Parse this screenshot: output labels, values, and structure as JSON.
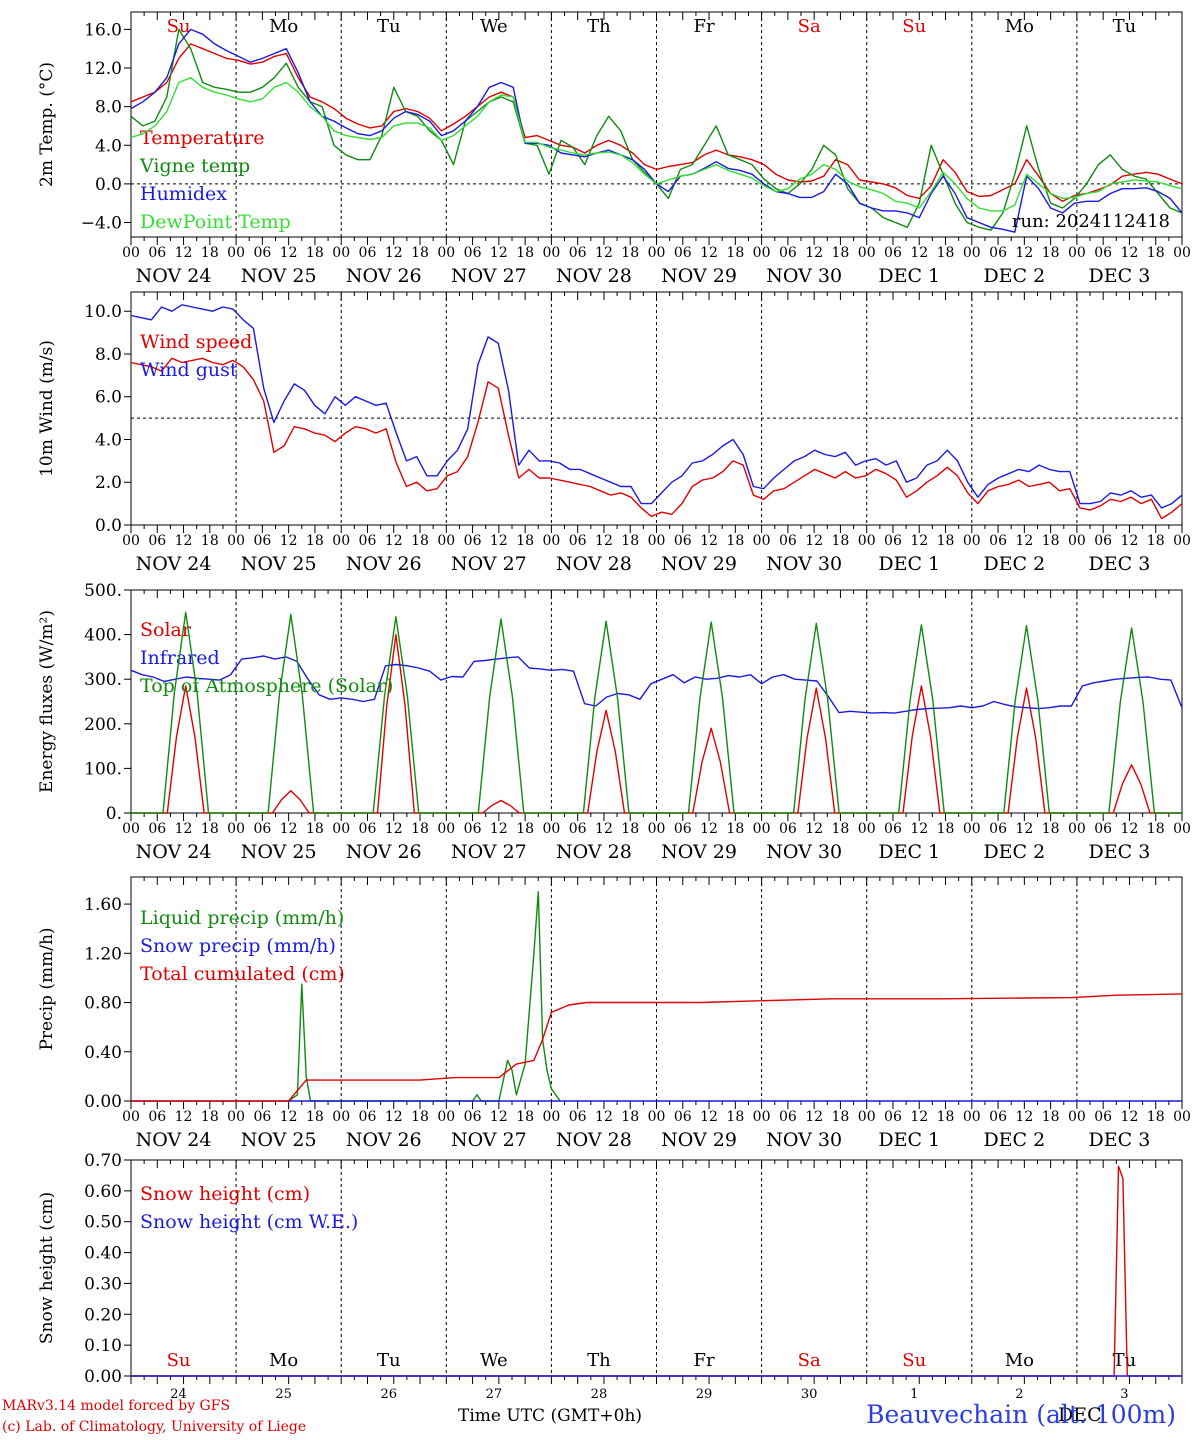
{
  "footer": {
    "model_line": "MARv3.14 model forced by GFS",
    "lab_line": "(c) Lab. of Climatology, University of Liege",
    "station": "Beauvechain (alt. 100m)",
    "xaxis_title": "Time UTC (GMT+0h)",
    "overlay_month": "DEC"
  },
  "time_axis": {
    "hour_ticks": [
      "00",
      "06",
      "12",
      "18"
    ],
    "dates": [
      "NOV 24",
      "NOV 25",
      "NOV 26",
      "NOV 27",
      "NOV 28",
      "NOV 29",
      "NOV 30",
      "DEC  1",
      "DEC  2",
      "DEC  3"
    ],
    "weekdays": [
      "Su",
      "Mo",
      "Tu",
      "We",
      "Th",
      "Fr",
      "Sa",
      "Su",
      "Mo",
      "Tu"
    ],
    "weekend_days": [
      0,
      6,
      7
    ],
    "bottom_daynums": [
      "24",
      "25",
      "26",
      "27",
      "28",
      "29",
      "30",
      "1",
      "2",
      "3"
    ],
    "n_hours": 240
  },
  "colors": {
    "red": "#e00000",
    "green": "#108a10",
    "blue": "#1a1ae0",
    "lightgreen": "#33dd33",
    "weekday": "#000000",
    "weekend": "#e00000"
  },
  "chart_data": [
    {
      "id": "temp",
      "type": "line",
      "ylabel": "2m Temp. (°C)",
      "ylim": [
        -5.5,
        17.8
      ],
      "ticks": [
        -4.0,
        0.0,
        4.0,
        8.0,
        12.0,
        16.0
      ],
      "tick_labels": [
        "−4.0",
        "0.0",
        "4.0",
        "8.0",
        "12.0",
        "16.0"
      ],
      "hline": 0,
      "weekday_header": true,
      "annotation": "run: 2024112418",
      "series": [
        {
          "name": "Temperature",
          "color": "red",
          "values": [
            8.5,
            9,
            9.5,
            10.5,
            13,
            14.5,
            14,
            13.5,
            13,
            12.8,
            12.4,
            12.6,
            13.2,
            13.5,
            11,
            9,
            8.5,
            7.8,
            6.8,
            6.2,
            5.8,
            6,
            7.5,
            7.8,
            7.5,
            6.8,
            5.5,
            6.2,
            7,
            8,
            9,
            9.5,
            9,
            4.8,
            5,
            4.5,
            4,
            3.8,
            3.2,
            4,
            4.5,
            4,
            3.2,
            2,
            1.5,
            1.8,
            2,
            2.2,
            3,
            3.5,
            3,
            2.8,
            2.5,
            2,
            1,
            0.4,
            0.2,
            0.3,
            0.8,
            2.5,
            2,
            0.4,
            0.2,
            0,
            -0.4,
            -1.2,
            -1.5,
            -0.2,
            2.5,
            1.2,
            -0.8,
            -1.3,
            -1.2,
            -0.6,
            0,
            2.5,
            0.8,
            -1,
            -1.8,
            -1.2,
            -1,
            -0.6,
            -0.1,
            0.8,
            1,
            1.2,
            1,
            0.5,
            0
          ]
        },
        {
          "name": "Vigne temp",
          "color": "green",
          "values": [
            7,
            6,
            6.5,
            9,
            16,
            14,
            10.5,
            10,
            9.8,
            9.5,
            9.5,
            10,
            11,
            12.5,
            10,
            8.5,
            8,
            4,
            3,
            2.5,
            2.5,
            5,
            10,
            7.5,
            7,
            5.5,
            4.5,
            2,
            6.5,
            7.5,
            8.5,
            9,
            8.5,
            4.2,
            4,
            1,
            4.5,
            3.8,
            2,
            5,
            7,
            5.5,
            2.5,
            1.2,
            0,
            -1.5,
            1.5,
            2,
            4,
            6,
            3,
            2.5,
            2,
            0.5,
            -0.5,
            -1,
            0,
            1.5,
            4,
            3,
            -0.5,
            -2,
            -2.5,
            -3.5,
            -4,
            -4.5,
            -2,
            4,
            1,
            -2,
            -4,
            -4.5,
            -4.8,
            -3,
            1,
            6,
            1.5,
            -2,
            -2.5,
            -1.5,
            0,
            2,
            3,
            1.5,
            0.8,
            0.5,
            -1,
            -2.5,
            -3
          ]
        },
        {
          "name": "Humidex",
          "color": "blue",
          "values": [
            7.8,
            8.5,
            9.5,
            11,
            14.5,
            16,
            15.5,
            14.5,
            13.8,
            13.2,
            12.6,
            13,
            13.5,
            14,
            11.5,
            8.5,
            7,
            6.5,
            5.8,
            5.2,
            5,
            5.5,
            6.8,
            7.5,
            7.2,
            6.5,
            5,
            5.5,
            6.5,
            8,
            10,
            10.5,
            10,
            4.2,
            4.2,
            4,
            3.2,
            3,
            2.8,
            3.2,
            3.5,
            3,
            2.5,
            1.5,
            0,
            -0.8,
            0.8,
            1,
            1.6,
            2.3,
            1.6,
            1.4,
            1,
            0,
            -0.8,
            -1,
            -1.4,
            -1.4,
            -0.8,
            1,
            0,
            -2,
            -2.5,
            -2.8,
            -2.8,
            -3,
            -3.5,
            -1,
            0.8,
            -1,
            -3.5,
            -4,
            -4.5,
            -4.7,
            -5,
            0.8,
            -0.5,
            -2.5,
            -3,
            -2,
            -1.8,
            -1.8,
            -1,
            -0.5,
            -0.5,
            -0.4,
            -0.8,
            -1.5,
            -3
          ]
        },
        {
          "name": "DewPoint Temp",
          "color": "lightgreen",
          "values": [
            4.8,
            5.2,
            6,
            7.5,
            10.5,
            11,
            10,
            9.5,
            9.2,
            8.8,
            8.5,
            8.8,
            10,
            10.5,
            9.5,
            8,
            7,
            5.5,
            5,
            4.8,
            4.6,
            4.8,
            6,
            6.3,
            6.3,
            5.8,
            4.5,
            5,
            6,
            7,
            8.5,
            9.2,
            9,
            4.3,
            4.3,
            3.8,
            3.5,
            3.2,
            3,
            3.2,
            3.3,
            3,
            2.2,
            1,
            0,
            0.4,
            0.8,
            1,
            1.5,
            2,
            1.4,
            1,
            0.6,
            -0.2,
            -0.8,
            -0.5,
            0.5,
            1,
            2,
            1.5,
            0.3,
            -0.3,
            -0.6,
            -1,
            -1.8,
            -2,
            -2.5,
            -0.8,
            1.2,
            0,
            -1.5,
            -2.5,
            -2.8,
            -2.8,
            -2.2,
            1,
            0,
            -1,
            -1.5,
            -1.4,
            -1,
            -0.8,
            0,
            0.2,
            0.4,
            0.3,
            0.2,
            -0.2,
            -0.5
          ]
        }
      ]
    },
    {
      "id": "wind",
      "type": "line",
      "ylabel": "10m Wind (m/s)",
      "ylim": [
        0,
        10.9
      ],
      "ticks": [
        0,
        2,
        4,
        6,
        8,
        10
      ],
      "tick_labels": [
        "0.0",
        "2.0",
        "4.0",
        "6.0",
        "8.0",
        "10.0"
      ],
      "hline": 5,
      "series": [
        {
          "name": "Wind speed",
          "color": "red",
          "values": [
            7.6,
            7.5,
            7.4,
            7.2,
            7.8,
            7.6,
            7.7,
            7.8,
            7.6,
            7.5,
            7.7,
            7.4,
            6.8,
            5.8,
            3.4,
            3.7,
            4.6,
            4.5,
            4.3,
            4.2,
            3.9,
            4.3,
            4.6,
            4.5,
            4.3,
            4.5,
            2.9,
            1.8,
            2,
            1.6,
            1.7,
            2.3,
            2.5,
            3.2,
            4.8,
            6.7,
            6.4,
            4.2,
            2.2,
            2.6,
            2.2,
            2.2,
            2.1,
            2,
            1.9,
            1.8,
            1.6,
            1.4,
            1.5,
            1.3,
            0.8,
            0.4,
            0.6,
            0.5,
            1,
            1.8,
            2.1,
            2.2,
            2.5,
            3,
            2.8,
            1.4,
            1.2,
            1.6,
            1.7,
            2,
            2.3,
            2.6,
            2.4,
            2.2,
            2.5,
            2.2,
            2.3,
            2.6,
            2.4,
            2.1,
            1.3,
            1.6,
            2,
            2.3,
            2.7,
            2.3,
            1.5,
            1,
            1.6,
            1.8,
            1.9,
            2.1,
            1.8,
            1.9,
            2,
            1.6,
            1.7,
            0.8,
            0.7,
            0.9,
            1.2,
            1.1,
            1.3,
            1,
            1.2,
            0.3,
            0.6,
            1
          ]
        },
        {
          "name": "Wind gust",
          "color": "blue",
          "values": [
            9.8,
            9.7,
            9.6,
            10.2,
            10,
            10.3,
            10.2,
            10.1,
            10,
            10.2,
            10.1,
            9.6,
            9.2,
            6.4,
            4.8,
            5.8,
            6.6,
            6.3,
            5.6,
            5.2,
            6,
            5.6,
            6,
            5.8,
            5.6,
            5.7,
            4.3,
            3,
            3.2,
            2.3,
            2.3,
            3,
            3.5,
            4.5,
            7.5,
            8.8,
            8.5,
            6.3,
            2.8,
            3.5,
            3,
            3,
            2.9,
            2.6,
            2.6,
            2.4,
            2.2,
            2,
            1.8,
            1.8,
            1,
            1,
            1.5,
            2,
            2.3,
            2.9,
            3,
            3.3,
            3.7,
            4,
            3.3,
            1.8,
            1.7,
            2.2,
            2.6,
            3,
            3.2,
            3.5,
            3.3,
            3.2,
            3.4,
            2.8,
            3,
            3.1,
            2.8,
            3,
            2,
            2.2,
            2.8,
            3,
            3.5,
            3,
            2,
            1.3,
            1.9,
            2.2,
            2.4,
            2.6,
            2.5,
            2.8,
            2.6,
            2.5,
            2.5,
            1,
            1,
            1.1,
            1.5,
            1.4,
            1.6,
            1.3,
            1.4,
            0.8,
            1,
            1.4
          ]
        }
      ]
    },
    {
      "id": "energy",
      "type": "line",
      "ylabel": "Energy fluxes (W/m²)",
      "ylim": [
        0,
        500
      ],
      "ticks": [
        0,
        100,
        200,
        300,
        400,
        500
      ],
      "tick_labels": [
        "0.",
        "100.",
        "200.",
        "300.",
        "400.",
        "500."
      ],
      "series": [
        {
          "name": "Solar",
          "color": "red",
          "peaks": [
            285,
            50,
            400,
            28,
            230,
            190,
            280,
            285,
            280,
            108
          ]
        },
        {
          "name": "Infrared",
          "color": "blue",
          "values": [
            320,
            310,
            305,
            295,
            300,
            305,
            302,
            300,
            298,
            310,
            345,
            348,
            352,
            345,
            350,
            340,
            300,
            265,
            255,
            258,
            255,
            250,
            255,
            330,
            333,
            330,
            325,
            318,
            298,
            306,
            305,
            340,
            342,
            345,
            348,
            350,
            325,
            323,
            320,
            322,
            318,
            245,
            240,
            260,
            268,
            265,
            255,
            290,
            300,
            310,
            292,
            305,
            300,
            302,
            308,
            305,
            310,
            290,
            305,
            310,
            300,
            298,
            296,
            262,
            225,
            228,
            226,
            224,
            225,
            224,
            228,
            232,
            234,
            235,
            236,
            240,
            236,
            240,
            250,
            243,
            238,
            236,
            234,
            236,
            240,
            240,
            285,
            292,
            296,
            300,
            302,
            304,
            305,
            300,
            298,
            236
          ]
        },
        {
          "name": "Top of Atmosphere (Solar)",
          "color": "green",
          "peaks": [
            450,
            445,
            440,
            435,
            430,
            428,
            425,
            422,
            420,
            415
          ]
        }
      ]
    },
    {
      "id": "precip",
      "type": "line",
      "ylabel": "Precip (mm/h)",
      "ylim": [
        0,
        1.82
      ],
      "ticks": [
        0,
        0.4,
        0.8,
        1.2,
        1.6
      ],
      "tick_labels": [
        "0.00",
        "0.40",
        "0.80",
        "1.20",
        "1.60"
      ],
      "series": [
        {
          "name": "Liquid precip (mm/h)",
          "color": "green",
          "points": [
            [
              36,
              0
            ],
            [
              38,
              0.05
            ],
            [
              39,
              0.95
            ],
            [
              40,
              0.2
            ],
            [
              41,
              0
            ],
            [
              78,
              0
            ],
            [
              79,
              0.05
            ],
            [
              80,
              0
            ],
            [
              84,
              0
            ],
            [
              86,
              0.33
            ],
            [
              87,
              0.25
            ],
            [
              88,
              0.05
            ],
            [
              90,
              0.3
            ],
            [
              92,
              1.2
            ],
            [
              93,
              1.7
            ],
            [
              94,
              0.5
            ],
            [
              95,
              0.25
            ],
            [
              96,
              0.1
            ],
            [
              97,
              0.05
            ],
            [
              98,
              0
            ]
          ]
        },
        {
          "name": "Snow precip (mm/h)",
          "color": "blue",
          "points": [
            [
              0,
              0
            ],
            [
              240,
              0
            ]
          ]
        },
        {
          "name": "Total cumulated (cm)",
          "color": "red",
          "points": [
            [
              0,
              0
            ],
            [
              36,
              0
            ],
            [
              40,
              0.17
            ],
            [
              66,
              0.17
            ],
            [
              74,
              0.19
            ],
            [
              84,
              0.19
            ],
            [
              88,
              0.3
            ],
            [
              92,
              0.33
            ],
            [
              94,
              0.5
            ],
            [
              96,
              0.72
            ],
            [
              100,
              0.78
            ],
            [
              104,
              0.8
            ],
            [
              130,
              0.8
            ],
            [
              160,
              0.83
            ],
            [
              185,
              0.83
            ],
            [
              215,
              0.84
            ],
            [
              225,
              0.86
            ],
            [
              240,
              0.87
            ]
          ]
        }
      ]
    },
    {
      "id": "snow",
      "type": "line",
      "ylabel": "Snow height (cm)",
      "ylim": [
        0,
        0.7
      ],
      "ticks": [
        0,
        0.1,
        0.2,
        0.3,
        0.4,
        0.5,
        0.6,
        0.7
      ],
      "tick_labels": [
        "0.00",
        "0.10",
        "0.20",
        "0.30",
        "0.40",
        "0.50",
        "0.60",
        "0.70"
      ],
      "weekday_bottom": true,
      "series": [
        {
          "name": "Snow height (cm)",
          "color": "red",
          "points": [
            [
              0,
              0
            ],
            [
              224.5,
              0
            ],
            [
              225.5,
              0.68
            ],
            [
              226.5,
              0.64
            ],
            [
              227.5,
              0
            ],
            [
              240,
              0
            ]
          ]
        },
        {
          "name": "Snow height (cm W.E.)",
          "color": "blue",
          "points": [
            [
              0,
              0
            ],
            [
              240,
              0
            ]
          ]
        }
      ]
    }
  ]
}
